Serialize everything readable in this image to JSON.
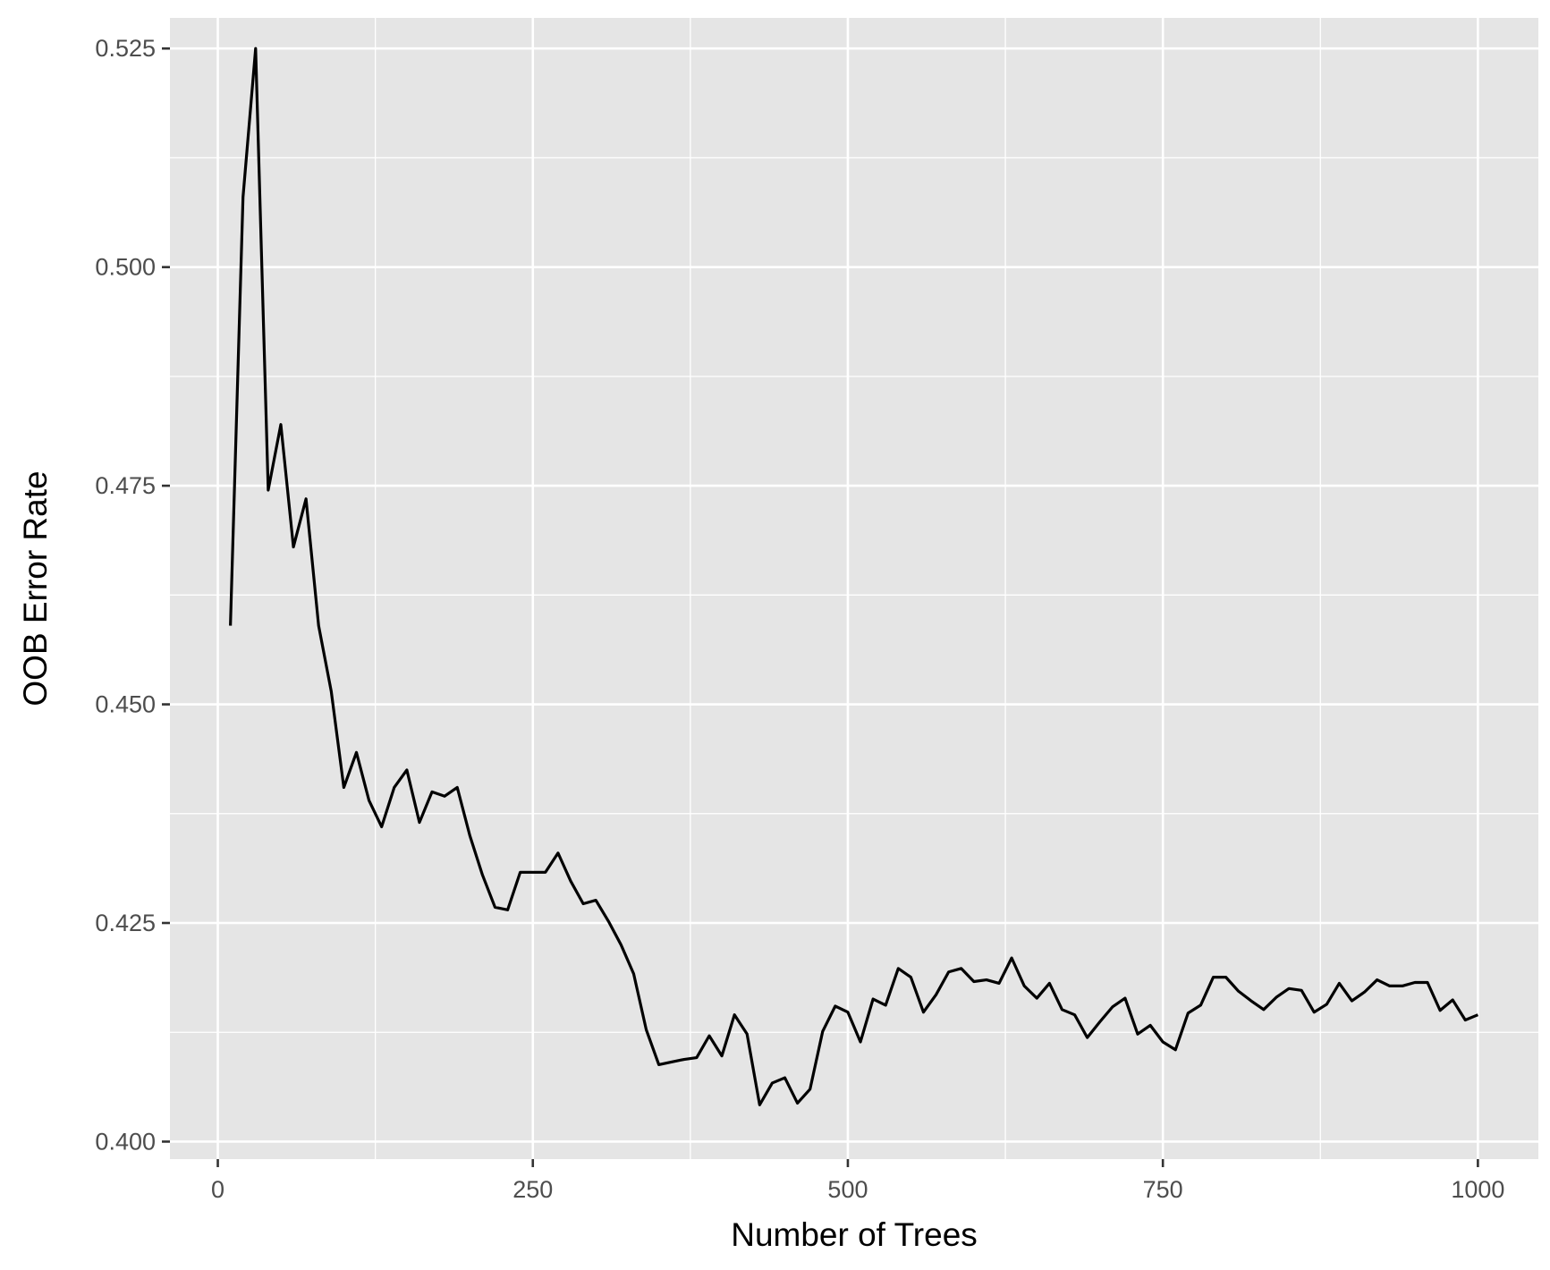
{
  "chart_data": {
    "type": "line",
    "title": "",
    "xlabel": "Number of Trees",
    "ylabel": "OOB Error Rate",
    "xlim": [
      -38,
      1048
    ],
    "ylim": [
      0.398,
      0.5285
    ],
    "x_ticks": [
      {
        "value": 0,
        "label": "0"
      },
      {
        "value": 250,
        "label": "250"
      },
      {
        "value": 500,
        "label": "500"
      },
      {
        "value": 750,
        "label": "750"
      },
      {
        "value": 1000,
        "label": "1000"
      }
    ],
    "y_ticks": [
      {
        "value": 0.4,
        "label": "0.400"
      },
      {
        "value": 0.425,
        "label": "0.425"
      },
      {
        "value": 0.45,
        "label": "0.450"
      },
      {
        "value": 0.475,
        "label": "0.475"
      },
      {
        "value": 0.5,
        "label": "0.500"
      },
      {
        "value": 0.525,
        "label": "0.525"
      }
    ],
    "grid": true,
    "colors": {
      "panel": "#e5e5e5",
      "grid": "#ffffff",
      "line": "#000000"
    },
    "series": [
      {
        "x": [
          10,
          20,
          30,
          40,
          50,
          60,
          70,
          80,
          90,
          100,
          110,
          120,
          130,
          140,
          150,
          160,
          170,
          180,
          190,
          200,
          210,
          220,
          230,
          240,
          250,
          260,
          270,
          280,
          290,
          300,
          310,
          320,
          330,
          340,
          350,
          360,
          370,
          380,
          390,
          400,
          410,
          420,
          430,
          440,
          450,
          460,
          470,
          480,
          490,
          500,
          510,
          520,
          530,
          540,
          550,
          560,
          570,
          580,
          590,
          600,
          610,
          620,
          630,
          640,
          650,
          660,
          670,
          680,
          690,
          700,
          710,
          720,
          730,
          740,
          750,
          760,
          770,
          780,
          790,
          800,
          810,
          820,
          830,
          840,
          850,
          860,
          870,
          880,
          890,
          900,
          910,
          920,
          930,
          940,
          950,
          960,
          970,
          980,
          990,
          1000
        ],
        "y": [
          0.459,
          0.508,
          0.525,
          0.4745,
          0.482,
          0.468,
          0.4735,
          0.459,
          0.4515,
          0.4405,
          0.4445,
          0.439,
          0.436,
          0.4405,
          0.4425,
          0.4365,
          0.44,
          0.4395,
          0.4405,
          0.435,
          0.4305,
          0.4268,
          0.4265,
          0.4308,
          0.4308,
          0.4308,
          0.433,
          0.4298,
          0.4272,
          0.4276,
          0.4252,
          0.4225,
          0.4192,
          0.4128,
          0.4088,
          0.4091,
          0.4094,
          0.4096,
          0.4121,
          0.4098,
          0.4145,
          0.4123,
          0.4042,
          0.4067,
          0.4073,
          0.4044,
          0.406,
          0.4126,
          0.4155,
          0.4148,
          0.4114,
          0.4163,
          0.4156,
          0.4198,
          0.4188,
          0.4148,
          0.4168,
          0.4194,
          0.4198,
          0.4183,
          0.4185,
          0.4181,
          0.421,
          0.4178,
          0.4164,
          0.4181,
          0.4151,
          0.4145,
          0.4119,
          0.4137,
          0.4154,
          0.4164,
          0.4123,
          0.4133,
          0.4114,
          0.4105,
          0.4147,
          0.4156,
          0.4188,
          0.4188,
          0.4172,
          0.4161,
          0.4151,
          0.4165,
          0.4175,
          0.4173,
          0.4148,
          0.4157,
          0.4181,
          0.4161,
          0.4171,
          0.4185,
          0.4178,
          0.4178,
          0.4182,
          0.4182,
          0.415,
          0.4162,
          0.4139,
          0.4145
        ]
      }
    ]
  }
}
